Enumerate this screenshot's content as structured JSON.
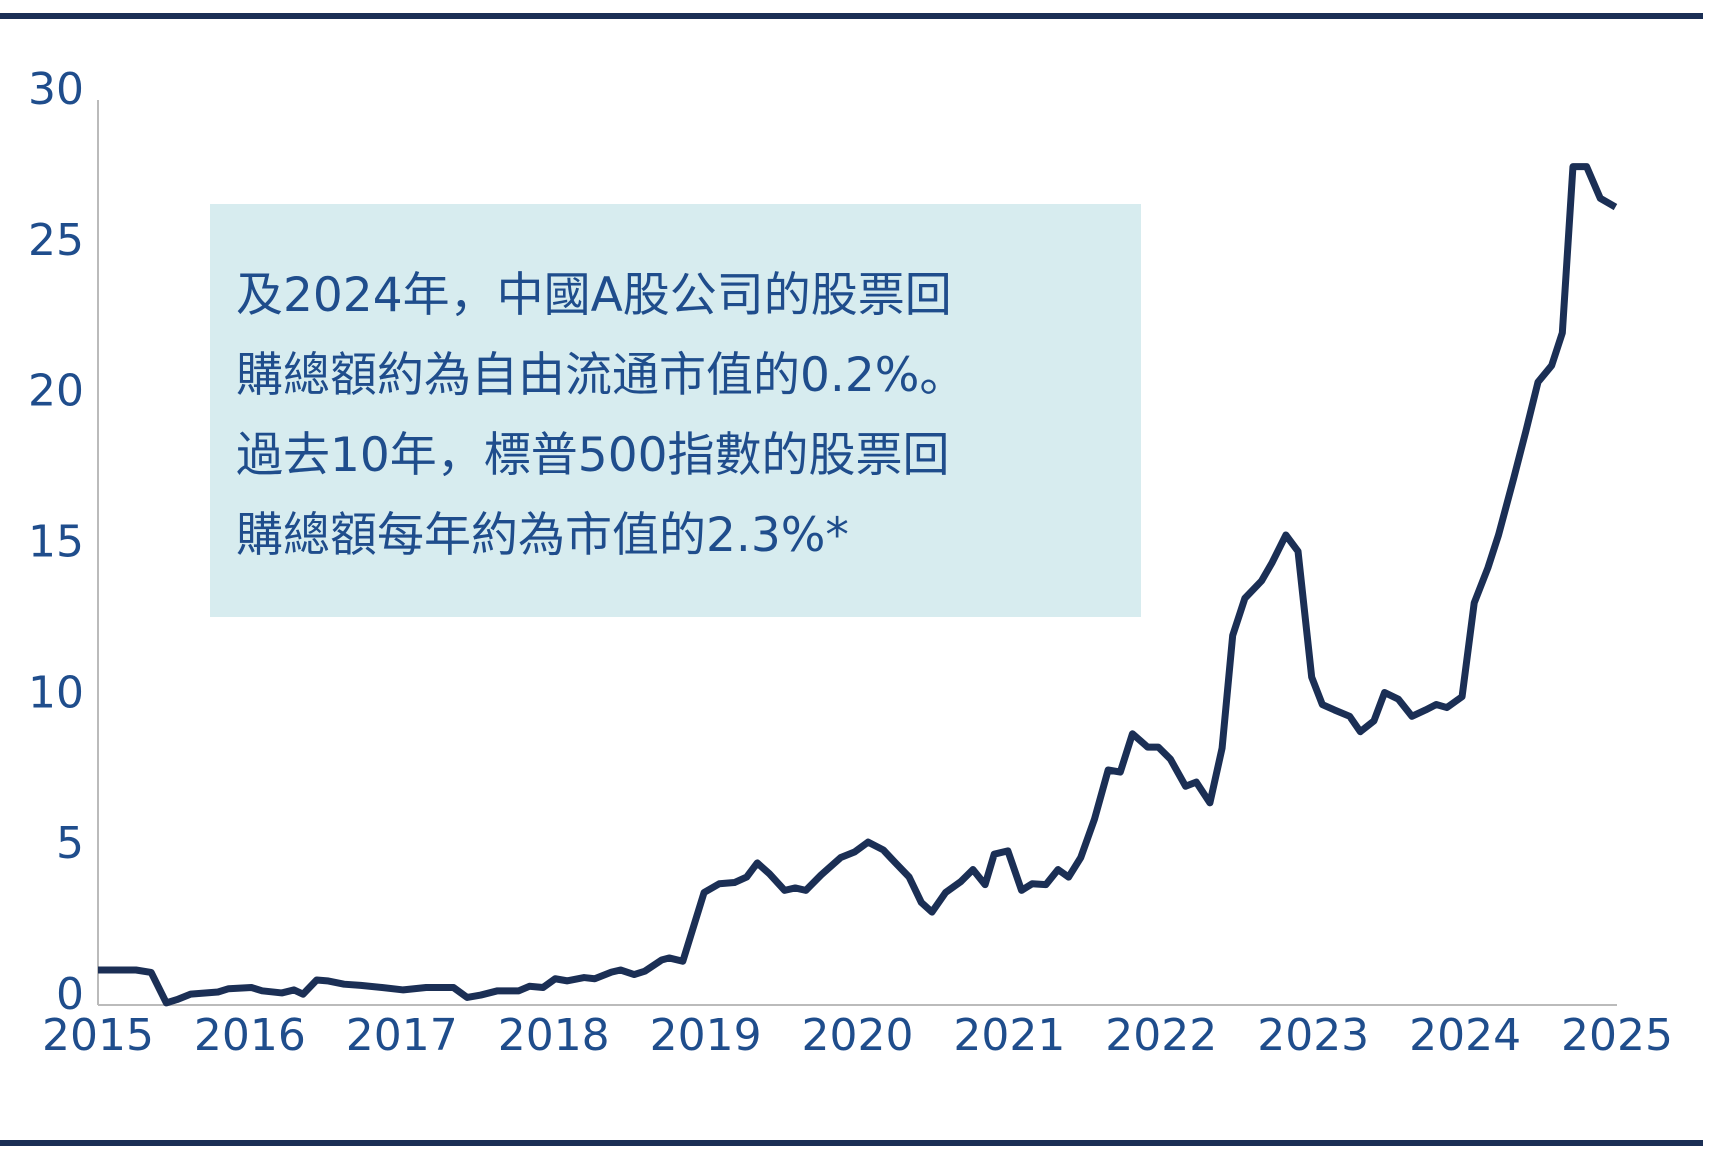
{
  "chart_data": {
    "type": "line",
    "annotation": [
      "及2024年，中國A股公司的股票回",
      "購總額約為自由流通市值的0.2%。",
      "過去10年，標普500指數的股票回",
      "購總額每年約為市值的2.3%*"
    ],
    "x": [
      2015.0,
      2015.25,
      2015.35,
      2015.45,
      2015.52,
      2015.61,
      2015.79,
      2015.86,
      2016.01,
      2016.08,
      2016.21,
      2016.29,
      2016.35,
      2016.44,
      2016.51,
      2016.62,
      2016.73,
      2016.87,
      2017.01,
      2017.16,
      2017.34,
      2017.43,
      2017.52,
      2017.63,
      2017.77,
      2017.84,
      2017.93,
      2018.01,
      2018.09,
      2018.2,
      2018.27,
      2018.38,
      2018.44,
      2018.53,
      2018.6,
      2018.71,
      2018.76,
      2018.85,
      2018.99,
      2019.09,
      2019.19,
      2019.27,
      2019.34,
      2019.42,
      2019.52,
      2019.59,
      2019.66,
      2019.76,
      2019.89,
      2019.98,
      2020.07,
      2020.17,
      2020.25,
      2020.34,
      2020.42,
      2020.49,
      2020.58,
      2020.68,
      2020.76,
      2020.84,
      2020.9,
      2020.99,
      2021.08,
      2021.15,
      2021.24,
      2021.32,
      2021.39,
      2021.47,
      2021.56,
      2021.65,
      2021.73,
      2021.81,
      2021.91,
      2021.98,
      2022.06,
      2022.16,
      2022.23,
      2022.32,
      2022.4,
      2022.47,
      2022.55,
      2022.66,
      2022.73,
      2022.82,
      2022.9,
      2022.99,
      2023.06,
      2023.14,
      2023.24,
      2023.31,
      2023.4,
      2023.47,
      2023.56,
      2023.65,
      2023.74,
      2023.81,
      2023.88,
      2023.98,
      2024.06,
      2024.15,
      2024.22,
      2024.32,
      2024.4,
      2024.48,
      2024.57,
      2024.64,
      2024.71,
      2024.8,
      2024.89,
      2024.99
    ],
    "series": [
      {
        "color": "#1b2f55",
        "values": [
          1.16,
          1.16,
          1.08,
          0.07,
          0.18,
          0.36,
          0.43,
          0.54,
          0.58,
          0.47,
          0.4,
          0.5,
          0.36,
          0.83,
          0.8,
          0.69,
          0.65,
          0.58,
          0.5,
          0.58,
          0.58,
          0.25,
          0.33,
          0.47,
          0.47,
          0.62,
          0.58,
          0.87,
          0.8,
          0.91,
          0.87,
          1.09,
          1.16,
          1.01,
          1.12,
          1.49,
          1.56,
          1.45,
          3.73,
          4.02,
          4.06,
          4.24,
          4.71,
          4.35,
          3.8,
          3.88,
          3.8,
          4.31,
          4.89,
          5.07,
          5.4,
          5.14,
          4.71,
          4.24,
          3.4,
          3.08,
          3.73,
          4.09,
          4.49,
          3.99,
          5.0,
          5.11,
          3.8,
          4.02,
          3.99,
          4.49,
          4.24,
          4.89,
          6.16,
          7.79,
          7.72,
          8.99,
          8.55,
          8.55,
          8.15,
          7.25,
          7.39,
          6.7,
          8.51,
          12.25,
          13.48,
          14.06,
          14.67,
          15.58,
          15.04,
          10.87,
          9.96,
          9.78,
          9.57,
          9.06,
          9.42,
          10.36,
          10.14,
          9.57,
          9.78,
          9.96,
          9.86,
          10.22,
          13.33,
          14.49,
          15.58,
          17.46,
          19.02,
          20.65,
          21.2,
          22.28,
          27.79,
          27.79,
          26.74,
          26.45
        ]
      }
    ],
    "xlim": [
      2015,
      2025
    ],
    "xticks": [
      2015,
      2016,
      2017,
      2018,
      2019,
      2020,
      2021,
      2022,
      2023,
      2024,
      2025
    ],
    "ylim": [
      0,
      30
    ],
    "yticks": [
      0,
      5,
      10,
      15,
      20,
      25,
      30
    ],
    "grid": false
  }
}
